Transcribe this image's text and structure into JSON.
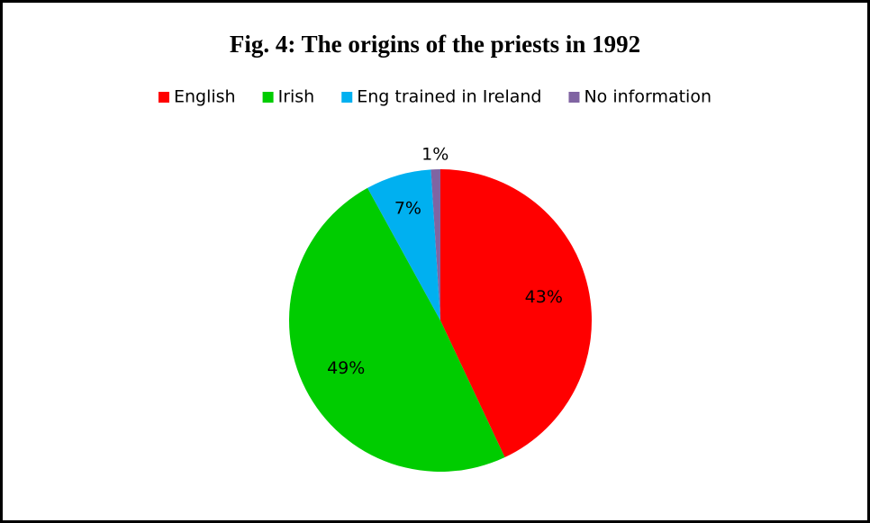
{
  "chart_data": {
    "type": "pie",
    "title": "Fig. 4: The origins of the priests in 1992",
    "categories": [
      "English",
      "Irish",
      "Eng trained in Ireland",
      "No information"
    ],
    "values": [
      43,
      49,
      7,
      1
    ],
    "value_labels": [
      "43%",
      "49%",
      "7%",
      "1%"
    ],
    "colors": [
      "#ff0000",
      "#00cc00",
      "#00b0f0",
      "#8064a2"
    ],
    "legend": "top"
  }
}
